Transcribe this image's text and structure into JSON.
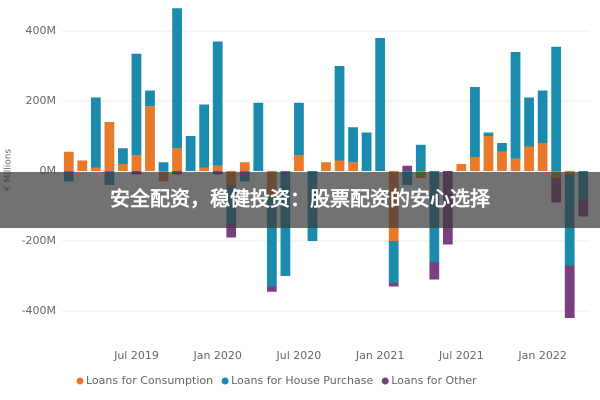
{
  "chart_data": {
    "type": "bar",
    "stacked": true,
    "y_label": "€ Millions",
    "categories": [
      null,
      null,
      null,
      null,
      null,
      "Jul 2019",
      null,
      null,
      null,
      null,
      null,
      "Jan 2020",
      null,
      null,
      null,
      null,
      null,
      "Jul 2020",
      null,
      null,
      null,
      null,
      null,
      "Jan 2021",
      null,
      null,
      null,
      null,
      null,
      "Jul 2021",
      null,
      null,
      null,
      null,
      null,
      "Jan 2022",
      null,
      null,
      null
    ],
    "series": [
      {
        "name": "Loans for Consumption",
        "color": "#e8782a",
        "values": [
          55,
          30,
          10,
          140,
          20,
          45,
          185,
          -30,
          65,
          0,
          10,
          15,
          -40,
          25,
          0,
          -70,
          0,
          45,
          0,
          25,
          30,
          25,
          0,
          0,
          -200,
          0,
          -20,
          0,
          0,
          20,
          40,
          100,
          55,
          35,
          70,
          80,
          -20,
          -10,
          0
        ]
      },
      {
        "name": "Loans for House Purchase",
        "color": "#1a8aad",
        "values": [
          -30,
          0,
          200,
          -40,
          45,
          290,
          45,
          25,
          400,
          100,
          180,
          355,
          -110,
          -30,
          195,
          -260,
          -300,
          150,
          -200,
          0,
          270,
          100,
          110,
          380,
          -120,
          -40,
          75,
          -260,
          0,
          0,
          200,
          10,
          25,
          305,
          140,
          150,
          355,
          -260,
          -80
        ]
      },
      {
        "name": "Loans for Other",
        "color": "#7b3f7f",
        "values": [
          0,
          0,
          0,
          0,
          0,
          -10,
          0,
          0,
          -10,
          0,
          0,
          -10,
          -40,
          0,
          0,
          -15,
          0,
          0,
          0,
          0,
          0,
          0,
          0,
          0,
          -10,
          15,
          0,
          -50,
          -210,
          0,
          0,
          0,
          0,
          0,
          0,
          0,
          -70,
          -150,
          -50
        ]
      }
    ],
    "ylim": [
      -450,
      470
    ],
    "yticks": [
      {
        "value": -400,
        "label": "-400M"
      },
      {
        "value": -200,
        "label": "-200M"
      },
      {
        "value": 0,
        "label": "0M"
      },
      {
        "value": 200,
        "label": "200M"
      },
      {
        "value": 400,
        "label": "400M"
      }
    ],
    "grid": true
  },
  "overlay_text": "安全配资，稳健投资：股票配资的安心选择"
}
